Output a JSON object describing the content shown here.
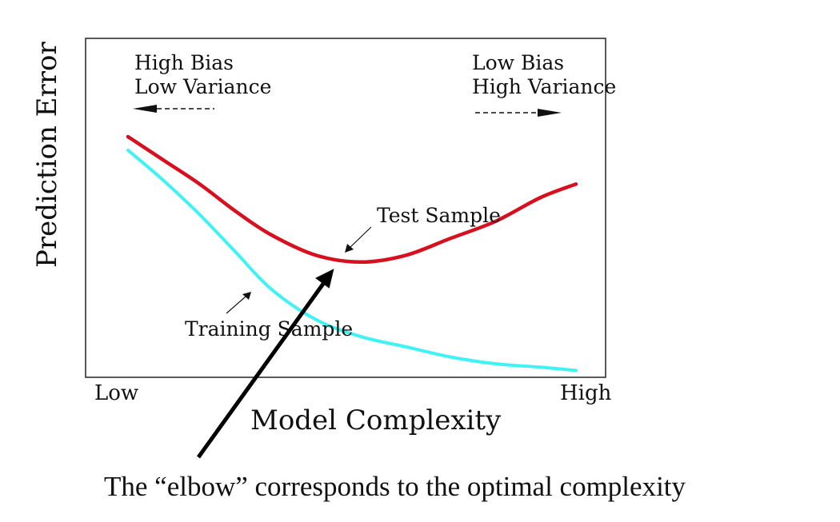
{
  "chart_data": {
    "type": "line",
    "title": "",
    "xlabel": "Model Complexity",
    "ylabel": "Prediction Error",
    "x_tick_labels": [
      "Low",
      "High"
    ],
    "xlim": [
      0,
      1
    ],
    "ylim": [
      0,
      1
    ],
    "grid": false,
    "series": [
      {
        "name": "Test Sample",
        "color": "#d6101e",
        "x": [
          0.0,
          0.08,
          0.16,
          0.24,
          0.32,
          0.42,
          0.52,
          0.62,
          0.72,
          0.82,
          0.92,
          1.0
        ],
        "y": [
          0.71,
          0.64,
          0.57,
          0.49,
          0.42,
          0.36,
          0.34,
          0.36,
          0.41,
          0.46,
          0.53,
          0.57
        ]
      },
      {
        "name": "Training Sample",
        "color": "#3ff2f4",
        "x": [
          0.0,
          0.08,
          0.16,
          0.24,
          0.32,
          0.42,
          0.52,
          0.62,
          0.72,
          0.82,
          0.92,
          1.0
        ],
        "y": [
          0.67,
          0.58,
          0.48,
          0.37,
          0.26,
          0.17,
          0.12,
          0.09,
          0.06,
          0.04,
          0.03,
          0.02
        ]
      }
    ],
    "annotations": [
      {
        "id": "high-bias",
        "lines": [
          "High Bias",
          "Low Variance"
        ],
        "arrow": "left-dashed"
      },
      {
        "id": "low-bias",
        "lines": [
          "Low Bias",
          "High Variance"
        ],
        "arrow": "right-dashed"
      },
      {
        "id": "test-sample-label",
        "text": "Test Sample"
      },
      {
        "id": "training-sample-label",
        "text": "Training Sample"
      }
    ],
    "caption": "The “elbow” corresponds to the optimal complexity"
  }
}
